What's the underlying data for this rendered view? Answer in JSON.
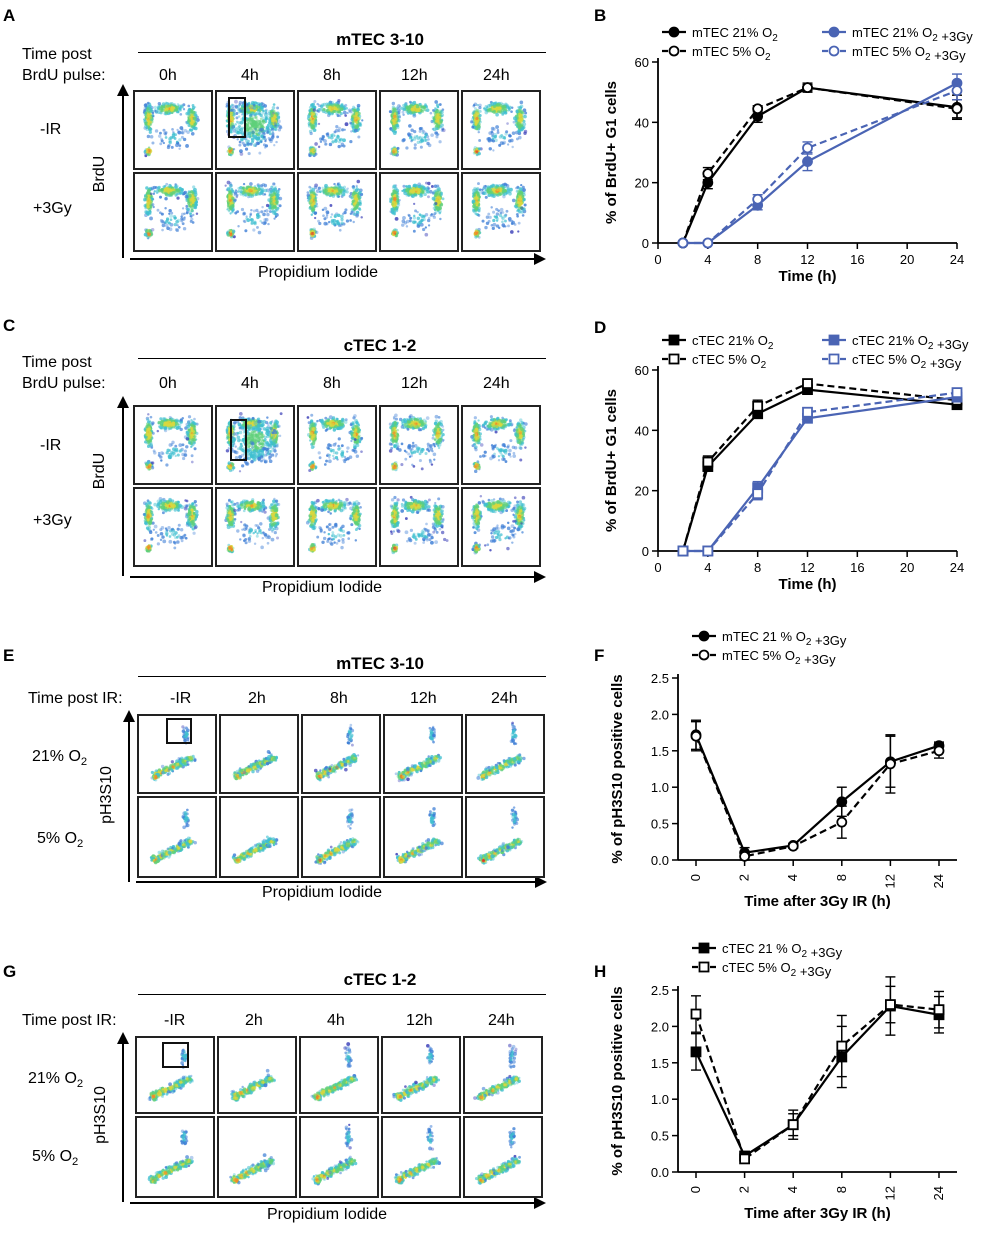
{
  "colors": {
    "black": "#000000",
    "blue": "#4a64b4",
    "gate": "#111111"
  },
  "panels": {
    "A": {
      "label": "A",
      "title": "mTEC 3-10",
      "row_header_1": "Time post",
      "row_header_2": "BrdU pulse:",
      "timepoints": [
        "0h",
        "4h",
        "8h",
        "12h",
        "24h"
      ],
      "rows": [
        "-IR",
        "+3Gy"
      ],
      "y_axis": "BrdU",
      "x_axis": "Propidium Iodide"
    },
    "C": {
      "label": "C",
      "title": "cTEC 1-2",
      "row_header_1": "Time post",
      "row_header_2": "BrdU pulse:",
      "timepoints": [
        "0h",
        "4h",
        "8h",
        "12h",
        "24h"
      ],
      "rows": [
        "-IR",
        "+3Gy"
      ],
      "y_axis": "BrdU",
      "x_axis": "Propidium Iodide"
    },
    "E": {
      "label": "E",
      "title": "mTEC 3-10",
      "row_header": "Time post IR:",
      "timepoints": [
        "-IR",
        "2h",
        "8h",
        "12h",
        "24h"
      ],
      "rows": [
        "21% O2",
        "5% O2"
      ],
      "y_axis": "pH3S10",
      "x_axis": "Propidium Iodide"
    },
    "G": {
      "label": "G",
      "title": "cTEC 1-2",
      "row_header": "Time post IR:",
      "timepoints": [
        "-IR",
        "2h",
        "4h",
        "12h",
        "24h"
      ],
      "rows": [
        "21% O2",
        "5% O2"
      ],
      "y_axis": "pH3S10",
      "x_axis": "Propidium Iodide"
    }
  },
  "chart_data": [
    {
      "panel": "B",
      "type": "line",
      "ylabel": "% of BrdU+ G1 cells",
      "xlabel": "Time (h)",
      "xlim": [
        0,
        24
      ],
      "ylim": [
        0,
        60
      ],
      "xticks": [
        0,
        4,
        8,
        12,
        16,
        20,
        24
      ],
      "yticks": [
        0,
        20,
        40,
        60
      ],
      "legend": [
        "mTEC 21% O2",
        "mTEC 5% O2",
        "mTEC 21% O2 +3Gy",
        "mTEC 5% O2 +3Gy"
      ],
      "series": [
        {
          "name": "mTEC 21% O2",
          "color": "#000000",
          "dashed": false,
          "marker": "circle-filled",
          "x": [
            2,
            4,
            8,
            12,
            24
          ],
          "y": [
            0,
            20,
            42,
            51.5,
            45
          ],
          "err": [
            0,
            2,
            2,
            1.5,
            4
          ]
        },
        {
          "name": "mTEC 5% O2",
          "color": "#000000",
          "dashed": true,
          "marker": "circle-open",
          "x": [
            2,
            4,
            8,
            12,
            24
          ],
          "y": [
            0,
            23,
            44.5,
            51.5,
            44.5
          ],
          "err": [
            0,
            2,
            1,
            1,
            3
          ]
        },
        {
          "name": "mTEC 21% O2 +3Gy",
          "color": "#4a64b4",
          "dashed": false,
          "marker": "circle-filled",
          "x": [
            2,
            4,
            8,
            12,
            24
          ],
          "y": [
            0,
            0,
            12.5,
            27,
            53
          ],
          "err": [
            0,
            0,
            1.5,
            3,
            3
          ]
        },
        {
          "name": "mTEC 5% O2 +3Gy",
          "color": "#4a64b4",
          "dashed": true,
          "marker": "circle-open",
          "x": [
            2,
            4,
            8,
            12,
            24
          ],
          "y": [
            0,
            0,
            14.5,
            31.5,
            50.5
          ],
          "err": [
            0,
            0,
            1.5,
            2,
            3
          ]
        }
      ]
    },
    {
      "panel": "D",
      "type": "line",
      "ylabel": "% of BrdU+ G1 cells",
      "xlabel": "Time (h)",
      "xlim": [
        0,
        24
      ],
      "ylim": [
        0,
        60
      ],
      "xticks": [
        0,
        4,
        8,
        12,
        16,
        20,
        24
      ],
      "yticks": [
        0,
        20,
        40,
        60
      ],
      "legend": [
        "cTEC 21% O2",
        "cTEC 5% O2",
        "cTEC 21% O2 +3Gy",
        "cTEC 5% O2 +3Gy"
      ],
      "series": [
        {
          "name": "cTEC 21% O2",
          "color": "#000000",
          "dashed": false,
          "marker": "square-filled",
          "x": [
            2,
            4,
            8,
            12,
            24
          ],
          "y": [
            0,
            28,
            45.5,
            53.5,
            48.5
          ],
          "err": [
            0,
            1.5,
            1.5,
            1,
            1.5
          ]
        },
        {
          "name": "cTEC 5% O2",
          "color": "#000000",
          "dashed": true,
          "marker": "square-open",
          "x": [
            2,
            4,
            8,
            12,
            24
          ],
          "y": [
            0,
            29.5,
            48,
            55.5,
            50
          ],
          "err": [
            0,
            2,
            2,
            1,
            1
          ]
        },
        {
          "name": "cTEC 21% O2 +3Gy",
          "color": "#4a64b4",
          "dashed": false,
          "marker": "square-filled",
          "x": [
            2,
            4,
            8,
            12,
            24
          ],
          "y": [
            0,
            0,
            21,
            44,
            51
          ],
          "err": [
            0,
            0,
            2,
            1,
            1.5
          ]
        },
        {
          "name": "cTEC 5% O2 +3Gy",
          "color": "#4a64b4",
          "dashed": true,
          "marker": "square-open",
          "x": [
            2,
            4,
            8,
            12,
            24
          ],
          "y": [
            0,
            0,
            19,
            46,
            52.5
          ],
          "err": [
            0,
            0,
            2,
            1.5,
            1
          ]
        }
      ]
    },
    {
      "panel": "F",
      "type": "line",
      "ylabel": "% of pH3S10 positive cells",
      "xlabel": "Time after 3Gy IR (h)",
      "categories": [
        "0",
        "2",
        "4",
        "8",
        "12",
        "24"
      ],
      "ylim": [
        0,
        2.5
      ],
      "yticks": [
        "0.0",
        "0.5",
        "1.0",
        "1.5",
        "2.0",
        "2.5"
      ],
      "legend": [
        "mTEC 21 % O2 +3Gy",
        "mTEC 5% O2 +3Gy"
      ],
      "series": [
        {
          "name": "mTEC 21 % O2 +3Gy",
          "color": "#000000",
          "dashed": false,
          "marker": "circle-filled",
          "y": [
            1.72,
            0.1,
            0.2,
            0.8,
            1.35,
            1.57
          ],
          "err": [
            0.2,
            0.07,
            0.03,
            0.2,
            0.35,
            0.05
          ]
        },
        {
          "name": "mTEC 5% O2 +3Gy",
          "color": "#000000",
          "dashed": true,
          "marker": "circle-open",
          "y": [
            1.7,
            0.05,
            0.19,
            0.52,
            1.32,
            1.5
          ],
          "err": [
            0.2,
            0.05,
            0.03,
            0.22,
            0.4,
            0.1
          ]
        }
      ]
    },
    {
      "panel": "H",
      "type": "line",
      "ylabel": "% of pH3S10 positive cells",
      "xlabel": "Time after 3Gy IR (h)",
      "categories": [
        "0",
        "2",
        "4",
        "8",
        "12",
        "24"
      ],
      "ylim": [
        0,
        2.5
      ],
      "yticks": [
        "0.0",
        "0.5",
        "1.0",
        "1.5",
        "2.0",
        "2.5"
      ],
      "legend": [
        "cTEC 21 % O2 +3Gy",
        "cTEC 5% O2 +3Gy"
      ],
      "series": [
        {
          "name": "cTEC 21 % O2 +3Gy",
          "color": "#000000",
          "dashed": false,
          "marker": "square-filled",
          "y": [
            1.65,
            0.22,
            0.65,
            1.58,
            2.28,
            2.16
          ],
          "err": [
            0.25,
            0.05,
            0.2,
            0.42,
            0.4,
            0.25
          ]
        },
        {
          "name": "cTEC 5% O2 +3Gy",
          "color": "#000000",
          "dashed": true,
          "marker": "square-open",
          "y": [
            2.17,
            0.18,
            0.65,
            1.73,
            2.3,
            2.23
          ],
          "err": [
            0.25,
            0.05,
            0.15,
            0.42,
            0.25,
            0.25
          ]
        }
      ]
    }
  ]
}
